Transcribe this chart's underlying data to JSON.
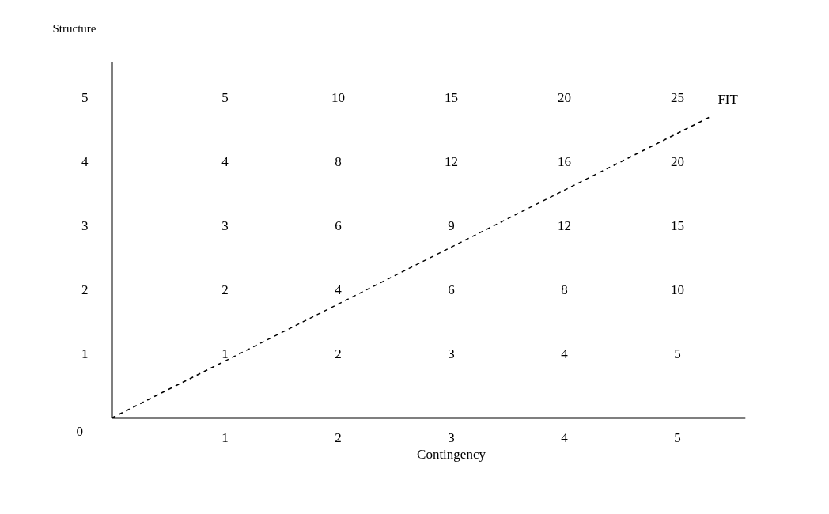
{
  "chart_data": {
    "type": "heatmap",
    "xlabel": "Contingency",
    "ylabel": "Structure",
    "categories": [
      "1",
      "2",
      "3",
      "4",
      "5"
    ],
    "y_categories": [
      "5",
      "4",
      "3",
      "2",
      "1"
    ],
    "cells": [
      [
        5,
        10,
        15,
        20,
        25
      ],
      [
        4,
        8,
        12,
        16,
        20
      ],
      [
        3,
        6,
        9,
        12,
        15
      ],
      [
        2,
        4,
        6,
        8,
        10
      ],
      [
        1,
        2,
        3,
        4,
        5
      ]
    ],
    "data_labels": true,
    "grid": false,
    "annotations": [
      "0",
      "FIT"
    ]
  }
}
